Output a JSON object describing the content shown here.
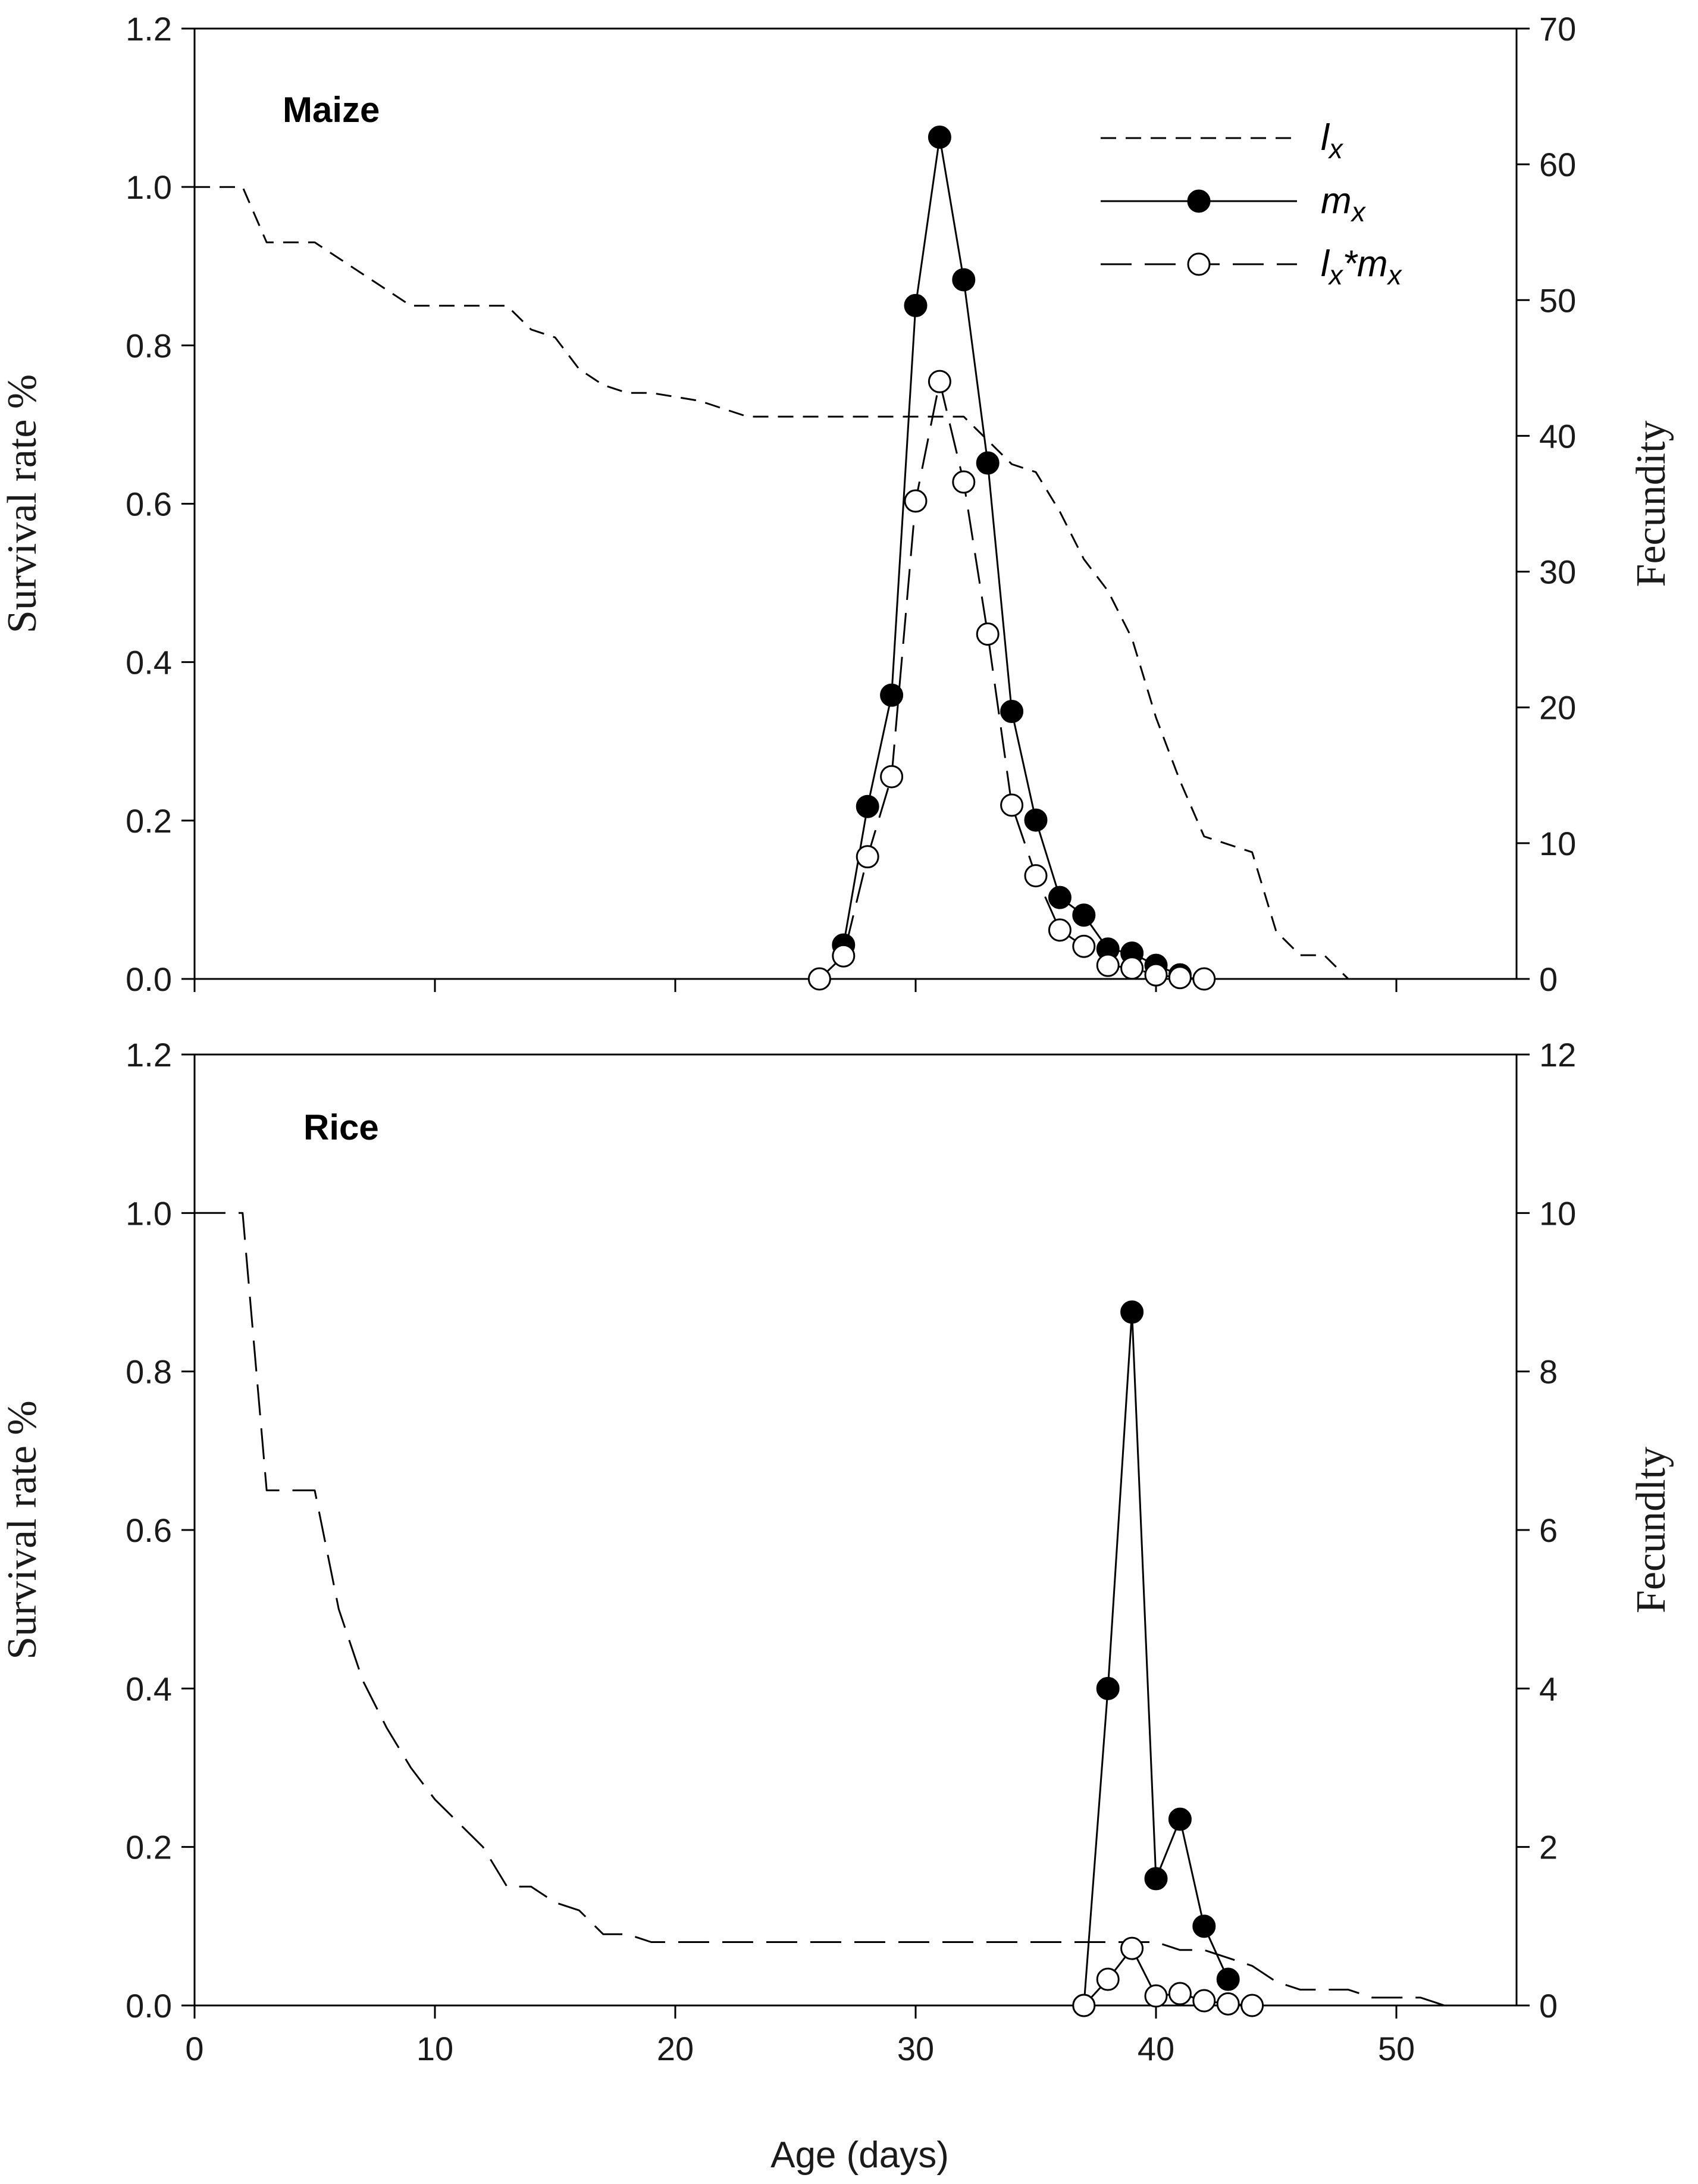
{
  "xaxis": {
    "label": "Age (days)",
    "range": [
      0,
      55
    ],
    "ticks": [
      0,
      10,
      20,
      30,
      40,
      50
    ],
    "tick_labels": [
      "0",
      "10",
      "20",
      "30",
      "40",
      "50"
    ]
  },
  "legend": {
    "entries": [
      {
        "key": "lx",
        "base": "l",
        "sub": "x"
      },
      {
        "key": "mx",
        "base": "m",
        "sub": "x"
      },
      {
        "key": "lxmx",
        "base1": "l",
        "sub1": "x",
        "star": "*",
        "base2": "m",
        "sub2": "x"
      }
    ]
  },
  "colors": {
    "line": "#000000",
    "filled_marker": "#000000",
    "open_marker": "#ffffff"
  },
  "chart_data": [
    {
      "type": "line",
      "title": "Maize",
      "xlabel": "Age (days)",
      "ylabel_left": "Survival rate %",
      "ylabel_right": "Fecundity",
      "xlim": [
        0,
        55
      ],
      "ylim_left": [
        0,
        1.2
      ],
      "ylim_right": [
        0,
        70
      ],
      "left_ticks": [
        0,
        0.2,
        0.4,
        0.6,
        0.8,
        1.0,
        1.2
      ],
      "left_tick_labels": [
        "0.0",
        "0.2",
        "0.4",
        "0.6",
        "0.8",
        "1.0",
        "1.2"
      ],
      "right_ticks": [
        0,
        10,
        20,
        30,
        40,
        50,
        60,
        70
      ],
      "right_tick_labels": [
        "0",
        "10",
        "20",
        "30",
        "40",
        "50",
        "60",
        "70"
      ],
      "series": [
        {
          "name": "lx",
          "axis": "left",
          "style": "dashed",
          "marker": "none",
          "x": [
            0,
            2,
            3,
            5,
            7,
            9,
            11,
            13,
            14,
            15,
            16,
            17,
            18,
            19,
            21,
            22,
            23,
            24,
            25,
            26,
            27,
            28,
            29,
            30,
            31,
            32,
            33,
            34,
            35,
            36,
            37,
            38,
            39,
            40,
            41,
            42,
            43,
            44,
            45,
            46,
            47,
            48
          ],
          "values": [
            1.0,
            1.0,
            0.93,
            0.93,
            0.89,
            0.85,
            0.85,
            0.85,
            0.82,
            0.81,
            0.77,
            0.75,
            0.74,
            0.74,
            0.73,
            0.72,
            0.71,
            0.71,
            0.71,
            0.71,
            0.71,
            0.71,
            0.71,
            0.71,
            0.71,
            0.71,
            0.68,
            0.65,
            0.64,
            0.59,
            0.53,
            0.49,
            0.43,
            0.33,
            0.25,
            0.18,
            0.17,
            0.16,
            0.06,
            0.03,
            0.03,
            0.0
          ]
        },
        {
          "name": "mx",
          "axis": "right",
          "style": "solid",
          "marker": "filled",
          "x": [
            27,
            28,
            29,
            30,
            31,
            32,
            33,
            34,
            35,
            36,
            37,
            38,
            39,
            40,
            41
          ],
          "values": [
            2.5,
            12.7,
            20.9,
            49.6,
            62.0,
            51.5,
            38.0,
            19.7,
            11.7,
            6.0,
            4.7,
            2.2,
            1.9,
            1.0,
            0.3
          ]
        },
        {
          "name": "lx*mx",
          "axis": "right",
          "style": "longdash",
          "marker": "open",
          "x": [
            26,
            27,
            28,
            29,
            30,
            31,
            32,
            33,
            34,
            35,
            36,
            37,
            38,
            39,
            40,
            41,
            42
          ],
          "values": [
            0.0,
            1.7,
            9.0,
            14.9,
            35.2,
            44.0,
            36.6,
            25.4,
            12.8,
            7.6,
            3.6,
            2.4,
            1.0,
            0.8,
            0.3,
            0.1,
            0.0
          ]
        }
      ]
    },
    {
      "type": "line",
      "title": "Rice",
      "xlabel": "Age (days)",
      "ylabel_left": "Survival rate %",
      "ylabel_right": "Fecundlty",
      "xlim": [
        0,
        55
      ],
      "ylim_left": [
        0,
        1.2
      ],
      "ylim_right": [
        0,
        12
      ],
      "left_ticks": [
        0,
        0.2,
        0.4,
        0.6,
        0.8,
        1.0,
        1.2
      ],
      "left_tick_labels": [
        "0.0",
        "0.2",
        "0.4",
        "0.6",
        "0.8",
        "1.0",
        "1.2"
      ],
      "right_ticks": [
        0,
        2,
        4,
        6,
        8,
        10,
        12
      ],
      "right_tick_labels": [
        "0",
        "2",
        "4",
        "6",
        "8",
        "10",
        "12"
      ],
      "series": [
        {
          "name": "lx",
          "axis": "left",
          "style": "longdash",
          "marker": "none",
          "x": [
            0,
            2,
            3,
            4,
            5,
            6,
            7,
            8,
            9,
            10,
            11,
            12,
            13,
            14,
            15,
            16,
            17,
            18,
            19,
            20,
            25,
            30,
            35,
            37,
            38,
            39,
            40,
            41,
            42,
            43,
            44,
            45,
            46,
            47,
            48,
            49,
            50,
            51,
            52
          ],
          "values": [
            1.0,
            1.0,
            0.65,
            0.65,
            0.65,
            0.5,
            0.41,
            0.35,
            0.3,
            0.26,
            0.23,
            0.2,
            0.15,
            0.15,
            0.13,
            0.12,
            0.09,
            0.09,
            0.08,
            0.08,
            0.08,
            0.08,
            0.08,
            0.08,
            0.08,
            0.08,
            0.08,
            0.07,
            0.07,
            0.06,
            0.05,
            0.03,
            0.02,
            0.02,
            0.02,
            0.01,
            0.01,
            0.01,
            0.0
          ]
        },
        {
          "name": "mx",
          "axis": "right",
          "style": "solid",
          "marker": "filled",
          "x": [
            37,
            38,
            39,
            40,
            41,
            42,
            43
          ],
          "values": [
            0.0,
            4.0,
            8.75,
            1.6,
            2.35,
            1.0,
            0.33
          ]
        },
        {
          "name": "lx*mx",
          "axis": "right",
          "style": "solid",
          "marker": "open",
          "x": [
            37,
            38,
            39,
            40,
            41,
            42,
            43,
            44
          ],
          "values": [
            0.0,
            0.33,
            0.72,
            0.12,
            0.15,
            0.06,
            0.02,
            0.0
          ]
        }
      ]
    }
  ]
}
